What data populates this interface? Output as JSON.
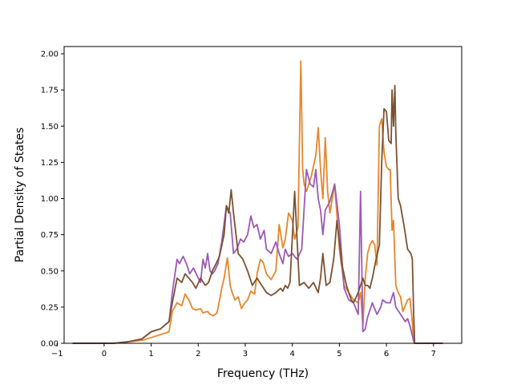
{
  "chart_data": {
    "type": "line",
    "title": "",
    "xlabel": "Frequency (THz)",
    "ylabel": "Partial Density of States",
    "xlim": [
      -0.85,
      7.6
    ],
    "ylim": [
      0,
      2.05
    ],
    "x_ticks": [
      -1,
      0,
      1,
      2,
      3,
      4,
      5,
      6,
      7
    ],
    "x_tick_labels": [
      "−1",
      "0",
      "1",
      "2",
      "3",
      "4",
      "5",
      "6",
      "7"
    ],
    "y_ticks": [
      0,
      0.25,
      0.5,
      0.75,
      1.0,
      1.25,
      1.5,
      1.75,
      2.0
    ],
    "y_tick_labels": [
      "0.00",
      "0.25",
      "0.50",
      "0.75",
      "1.00",
      "1.25",
      "1.50",
      "1.75",
      "2.00"
    ],
    "grid": false,
    "legend": "none",
    "series": [
      {
        "color": "#e8862a",
        "x": [
          -0.67,
          0.2,
          0.5,
          0.8,
          1.0,
          1.2,
          1.38,
          1.45,
          1.55,
          1.65,
          1.72,
          1.8,
          1.88,
          1.95,
          2.05,
          2.1,
          2.2,
          2.25,
          2.32,
          2.4,
          2.5,
          2.55,
          2.62,
          2.68,
          2.72,
          2.78,
          2.85,
          2.92,
          2.97,
          3.05,
          3.12,
          3.2,
          3.25,
          3.32,
          3.38,
          3.45,
          3.55,
          3.65,
          3.72,
          3.8,
          3.85,
          3.92,
          4.0,
          4.05,
          4.12,
          4.18,
          4.22,
          4.25,
          4.3,
          4.4,
          4.5,
          4.55,
          4.6,
          4.65,
          4.7,
          4.75,
          4.8,
          4.9,
          5.0,
          5.1,
          5.2,
          5.3,
          5.4,
          5.45,
          5.5,
          5.55,
          5.6,
          5.65,
          5.7,
          5.75,
          5.8,
          5.85,
          5.9,
          5.95,
          6.0,
          6.05,
          6.08,
          6.12,
          6.15,
          6.2,
          6.25,
          6.3,
          6.35,
          6.45,
          6.5,
          6.55,
          6.57,
          6.6,
          7.2
        ],
        "y": [
          0,
          0,
          0.01,
          0.02,
          0.04,
          0.06,
          0.08,
          0.22,
          0.28,
          0.26,
          0.34,
          0.3,
          0.24,
          0.23,
          0.24,
          0.21,
          0.22,
          0.2,
          0.19,
          0.21,
          0.38,
          0.45,
          0.59,
          0.4,
          0.35,
          0.3,
          0.32,
          0.24,
          0.27,
          0.3,
          0.36,
          0.34,
          0.48,
          0.58,
          0.56,
          0.48,
          0.44,
          0.5,
          0.82,
          0.66,
          0.72,
          0.9,
          0.85,
          0.72,
          0.8,
          1.95,
          1.2,
          1.1,
          1.05,
          1.15,
          1.3,
          1.49,
          1.2,
          1.0,
          1.42,
          1.05,
          0.9,
          1.1,
          0.65,
          0.4,
          0.35,
          0.3,
          0.28,
          0.35,
          0.12,
          0.45,
          0.62,
          0.68,
          0.71,
          0.68,
          0.54,
          1.5,
          1.55,
          1.32,
          1.22,
          1.2,
          1.2,
          0.78,
          0.85,
          0.4,
          0.35,
          0.32,
          0.22,
          0.3,
          0.31,
          0.15,
          0.02,
          0,
          0
        ]
      },
      {
        "color": "#9b59b6",
        "x": [
          -0.67,
          0.2,
          0.5,
          0.8,
          1.0,
          1.2,
          1.38,
          1.45,
          1.55,
          1.6,
          1.68,
          1.75,
          1.82,
          1.9,
          2.0,
          2.05,
          2.1,
          2.15,
          2.2,
          2.25,
          2.3,
          2.35,
          2.42,
          2.5,
          2.6,
          2.68,
          2.75,
          2.82,
          2.9,
          2.97,
          3.05,
          3.12,
          3.18,
          3.25,
          3.32,
          3.4,
          3.45,
          3.55,
          3.65,
          3.72,
          3.8,
          3.85,
          3.92,
          4.0,
          4.1,
          4.2,
          4.3,
          4.38,
          4.45,
          4.5,
          4.55,
          4.6,
          4.65,
          4.7,
          4.8,
          4.9,
          5.0,
          5.1,
          5.2,
          5.3,
          5.4,
          5.45,
          5.5,
          5.55,
          5.6,
          5.7,
          5.8,
          5.88,
          5.92,
          6.0,
          6.08,
          6.12,
          6.15,
          6.2,
          6.3,
          6.4,
          6.45,
          6.5,
          6.57,
          6.6,
          7.2
        ],
        "y": [
          0,
          0,
          0.01,
          0.03,
          0.08,
          0.1,
          0.15,
          0.35,
          0.58,
          0.55,
          0.6,
          0.55,
          0.48,
          0.52,
          0.45,
          0.42,
          0.58,
          0.52,
          0.62,
          0.5,
          0.48,
          0.5,
          0.55,
          0.7,
          0.95,
          0.9,
          0.62,
          0.65,
          0.72,
          0.7,
          0.75,
          0.88,
          0.8,
          0.82,
          0.72,
          0.78,
          0.65,
          0.62,
          0.7,
          0.62,
          0.55,
          0.65,
          0.6,
          0.62,
          0.58,
          0.65,
          1.2,
          1.1,
          1.08,
          1.2,
          1.0,
          0.92,
          0.75,
          0.92,
          0.98,
          1.1,
          0.82,
          0.38,
          0.3,
          0.28,
          0.2,
          1.05,
          0.08,
          0.1,
          0.18,
          0.28,
          0.2,
          0.25,
          0.3,
          0.28,
          0.28,
          0.32,
          0.35,
          0.25,
          0.2,
          0.15,
          0.17,
          0.12,
          0.03,
          0,
          0
        ]
      },
      {
        "color": "#7b5132",
        "x": [
          -0.67,
          0.2,
          0.5,
          0.8,
          1.0,
          1.2,
          1.38,
          1.45,
          1.55,
          1.65,
          1.72,
          1.8,
          1.88,
          1.95,
          2.05,
          2.15,
          2.22,
          2.3,
          2.38,
          2.45,
          2.55,
          2.6,
          2.65,
          2.7,
          2.75,
          2.85,
          2.95,
          3.05,
          3.15,
          3.25,
          3.35,
          3.45,
          3.55,
          3.65,
          3.75,
          3.8,
          3.85,
          3.9,
          3.95,
          4.05,
          4.15,
          4.25,
          4.35,
          4.45,
          4.55,
          4.6,
          4.65,
          4.72,
          4.8,
          4.88,
          4.95,
          5.05,
          5.15,
          5.25,
          5.3,
          5.4,
          5.5,
          5.55,
          5.6,
          5.65,
          5.7,
          5.78,
          5.85,
          5.9,
          5.95,
          6.0,
          6.05,
          6.1,
          6.12,
          6.15,
          6.18,
          6.2,
          6.25,
          6.3,
          6.38,
          6.45,
          6.52,
          6.55,
          6.58,
          6.6,
          7.2
        ],
        "y": [
          0,
          0,
          0.01,
          0.03,
          0.08,
          0.1,
          0.15,
          0.28,
          0.45,
          0.42,
          0.48,
          0.45,
          0.42,
          0.38,
          0.45,
          0.4,
          0.42,
          0.5,
          0.55,
          0.6,
          0.75,
          0.95,
          0.9,
          1.06,
          0.9,
          0.62,
          0.58,
          0.5,
          0.4,
          0.45,
          0.4,
          0.35,
          0.33,
          0.35,
          0.38,
          0.36,
          0.4,
          0.38,
          0.42,
          1.05,
          0.4,
          0.42,
          0.38,
          0.42,
          0.35,
          0.45,
          0.62,
          0.4,
          0.42,
          0.58,
          0.85,
          0.55,
          0.4,
          0.3,
          0.28,
          0.35,
          0.45,
          0.4,
          0.4,
          0.38,
          0.45,
          0.58,
          0.68,
          1.25,
          1.62,
          1.6,
          1.4,
          1.38,
          1.75,
          1.5,
          1.78,
          1.45,
          1.0,
          0.95,
          0.8,
          0.65,
          0.62,
          0.58,
          0.2,
          0,
          0
        ]
      }
    ]
  }
}
